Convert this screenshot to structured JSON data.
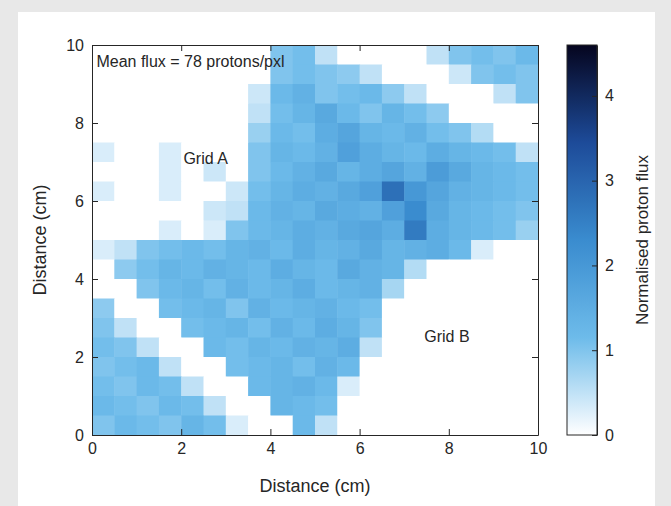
{
  "chart_data": {
    "type": "heatmap",
    "x_label": "Distance (cm)",
    "y_label": "Distance (cm)",
    "xlim": [
      0,
      10
    ],
    "ylim": [
      0,
      10
    ],
    "xticks": [
      0,
      2,
      4,
      6,
      8,
      10
    ],
    "yticks": [
      0,
      2,
      4,
      6,
      8,
      10
    ],
    "x": [
      0.25,
      0.75,
      1.25,
      1.75,
      2.25,
      2.75,
      3.25,
      3.75,
      4.25,
      4.75,
      5.25,
      5.75,
      6.25,
      6.75,
      7.25,
      7.75,
      8.25,
      8.75,
      9.25,
      9.75
    ],
    "y": [
      9.75,
      9.25,
      8.75,
      8.25,
      7.75,
      7.25,
      6.75,
      6.25,
      5.75,
      5.25,
      4.75,
      4.25,
      3.75,
      3.25,
      2.75,
      2.25,
      1.75,
      1.25,
      0.75,
      0.25
    ],
    "values": [
      [
        0,
        0,
        0,
        0,
        0,
        0,
        0,
        0,
        1.0,
        1.1,
        0.5,
        0,
        0,
        0,
        0,
        0.5,
        1.0,
        1.1,
        1.0,
        1.2
      ],
      [
        0,
        0,
        0,
        0,
        0,
        0,
        0,
        0,
        1.0,
        1.1,
        1.0,
        0.9,
        0.5,
        0,
        0,
        0,
        0.4,
        1.0,
        1.1,
        1.0
      ],
      [
        0,
        0,
        0,
        0,
        0,
        0,
        0,
        0.4,
        1.2,
        1.4,
        1.0,
        1.1,
        1.2,
        0.9,
        0.5,
        0,
        0,
        0,
        0.5,
        1.0
      ],
      [
        0,
        0,
        0,
        0,
        0,
        0,
        0,
        0.5,
        1.1,
        1.3,
        1.6,
        1.2,
        1.0,
        1.3,
        1.1,
        0.9,
        0,
        0,
        0,
        0
      ],
      [
        0,
        0,
        0,
        0,
        0,
        0,
        0,
        0.8,
        1.2,
        1.1,
        1.5,
        1.7,
        1.3,
        1.2,
        1.4,
        1.1,
        1.0,
        0.6,
        0,
        0
      ],
      [
        0.3,
        0,
        0,
        0.3,
        0,
        0,
        0,
        1.0,
        1.3,
        1.2,
        1.4,
        1.8,
        1.5,
        1.3,
        1.2,
        1.5,
        1.3,
        1.2,
        1.1,
        0.5
      ],
      [
        0,
        0,
        0,
        0.3,
        0,
        0.4,
        0,
        1.0,
        1.2,
        1.4,
        1.6,
        1.3,
        1.5,
        1.7,
        1.4,
        1.9,
        1.6,
        1.3,
        1.2,
        1.1
      ],
      [
        0.3,
        0,
        0,
        0.3,
        0,
        0,
        0.4,
        1.1,
        1.3,
        1.5,
        1.4,
        1.6,
        1.8,
        2.8,
        2.0,
        1.7,
        1.4,
        1.3,
        1.2,
        1.1
      ],
      [
        0,
        0,
        0,
        0,
        0,
        0.4,
        0.5,
        1.2,
        1.4,
        1.3,
        1.6,
        1.5,
        1.4,
        1.8,
        2.3,
        1.6,
        1.3,
        1.2,
        1.1,
        1.0
      ],
      [
        0,
        0,
        0,
        0.3,
        0,
        0.3,
        1.0,
        1.2,
        1.3,
        1.5,
        1.4,
        1.6,
        1.7,
        1.5,
        2.6,
        1.5,
        1.3,
        1.2,
        1.1,
        0.8
      ],
      [
        0.3,
        0.5,
        1.0,
        1.1,
        1.2,
        1.1,
        1.3,
        1.4,
        1.2,
        1.5,
        1.3,
        1.4,
        1.6,
        1.3,
        1.4,
        1.5,
        1.2,
        0.3,
        0,
        0
      ],
      [
        0,
        0.9,
        1.1,
        1.3,
        1.2,
        1.4,
        1.3,
        1.2,
        1.5,
        1.3,
        1.2,
        1.6,
        1.4,
        1.3,
        0.6,
        0,
        0,
        0,
        0,
        0
      ],
      [
        0,
        0,
        1.0,
        1.2,
        1.3,
        1.1,
        1.4,
        1.2,
        1.3,
        1.5,
        1.2,
        1.3,
        1.4,
        0.7,
        0,
        0,
        0,
        0,
        0,
        0
      ],
      [
        0.9,
        0,
        0,
        1.1,
        1.2,
        1.3,
        1.0,
        1.4,
        1.2,
        1.3,
        1.4,
        1.2,
        1.1,
        0,
        0,
        0,
        0,
        0,
        0,
        0
      ],
      [
        1.0,
        0.5,
        0,
        0,
        1.1,
        1.2,
        1.3,
        1.1,
        1.4,
        1.2,
        1.5,
        1.3,
        1.0,
        0,
        0,
        0,
        0,
        0,
        0,
        0
      ],
      [
        1.1,
        1.0,
        0.5,
        0,
        0,
        1.2,
        1.1,
        1.3,
        1.2,
        1.4,
        1.3,
        1.5,
        0.5,
        0,
        0,
        0,
        0,
        0,
        0,
        0
      ],
      [
        1.0,
        1.1,
        1.2,
        0.5,
        0,
        0,
        1.1,
        1.2,
        1.3,
        1.1,
        1.4,
        1.2,
        0,
        0,
        0,
        0,
        0,
        0,
        0,
        0
      ],
      [
        1.1,
        1.0,
        1.2,
        1.1,
        0.5,
        0,
        0,
        1.2,
        1.3,
        1.4,
        1.2,
        0.3,
        0,
        0,
        0,
        0,
        0,
        0,
        0,
        0
      ],
      [
        1.2,
        1.1,
        1.0,
        1.2,
        1.1,
        0.5,
        0,
        0,
        1.3,
        1.2,
        1.1,
        0,
        0,
        0,
        0,
        0,
        0,
        0,
        0,
        0
      ],
      [
        1.0,
        1.2,
        1.1,
        1.0,
        1.3,
        1.1,
        0.3,
        0,
        0,
        1.2,
        0.5,
        0,
        0,
        0,
        0,
        0,
        0,
        0,
        0,
        0
      ]
    ],
    "colorbar_label": "Normalised proton flux",
    "colorbar_range": [
      0,
      4.6
    ],
    "colorbar_ticks": [
      0,
      1,
      2,
      3,
      4
    ],
    "annotations": [
      {
        "text": "Mean flux = 78 protons/pxl",
        "x": 0.1,
        "y": 9.55
      },
      {
        "text": "Grid A",
        "x": 2.05,
        "y": 7.05
      },
      {
        "text": "Grid B",
        "x": 7.45,
        "y": 2.5
      }
    ]
  }
}
